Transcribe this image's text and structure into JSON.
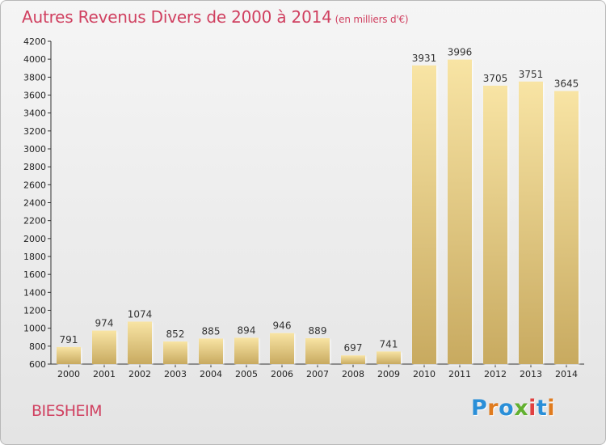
{
  "header": {
    "title": "Autres Revenus Divers de 2000 à 2014",
    "unit": "(en milliers d'€)"
  },
  "footer": {
    "commune": "BIESHEIM",
    "brand": "Proxiti"
  },
  "colors": {
    "title": "#d04060",
    "bar_light": "#f8e4a4",
    "bar_dark": "#c8aa60",
    "brand_letters": [
      "#2a8fd8",
      "#e07b1e",
      "#2a8fd8",
      "#62b030",
      "#e04040",
      "#2a8fd8",
      "#e07b1e"
    ]
  },
  "chart_data": {
    "type": "bar",
    "categories": [
      "2000",
      "2001",
      "2002",
      "2003",
      "2004",
      "2005",
      "2006",
      "2007",
      "2008",
      "2009",
      "2010",
      "2011",
      "2012",
      "2013",
      "2014"
    ],
    "values": [
      791,
      974,
      1074,
      852,
      885,
      894,
      946,
      889,
      697,
      741,
      3931,
      3996,
      3705,
      3751,
      3645
    ],
    "ylim": [
      600,
      4200
    ],
    "yticks": [
      600,
      800,
      1000,
      1200,
      1400,
      1600,
      1800,
      2000,
      2200,
      2400,
      2600,
      2800,
      3000,
      3200,
      3400,
      3600,
      3800,
      4000,
      4200
    ],
    "grid": false,
    "title": "Autres Revenus Divers de 2000 à 2014",
    "xlabel": "",
    "ylabel": ""
  }
}
